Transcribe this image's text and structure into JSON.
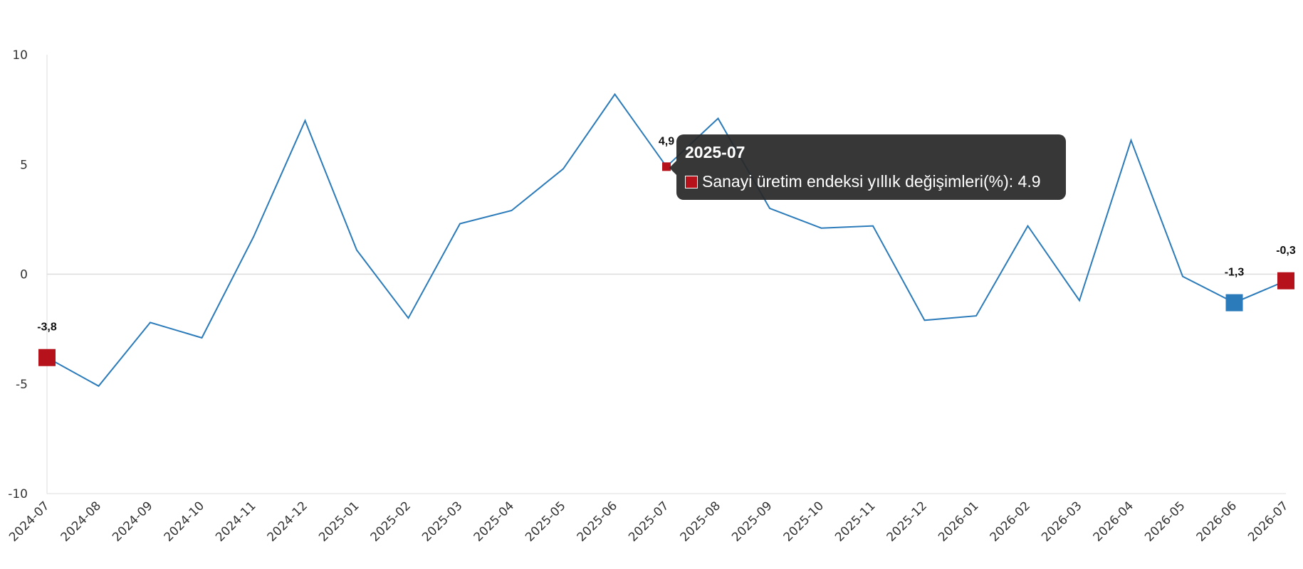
{
  "chart_data": {
    "type": "line",
    "title": "",
    "xlabel": "",
    "ylabel": "",
    "ylim": [
      -10,
      10
    ],
    "y_ticks": [
      "-10",
      "-5",
      "0",
      "5",
      "10"
    ],
    "y_tick_values": [
      -10,
      -5,
      0,
      5,
      10
    ],
    "categories": [
      "2024-07",
      "2024-08",
      "2024-09",
      "2024-10",
      "2024-11",
      "2024-12",
      "2025-01",
      "2025-02",
      "2025-03",
      "2025-04",
      "2025-05",
      "2025-06",
      "2025-07",
      "2025-08",
      "2025-09",
      "2025-10",
      "2025-11",
      "2025-12",
      "2026-01",
      "2026-02",
      "2026-03",
      "2026-04",
      "2026-05",
      "2026-06",
      "2026-07"
    ],
    "series": [
      {
        "name": "Sanayi üretim endeksi yıllık değişimleri(%)",
        "color": "#2b7bba",
        "values": [
          -3.8,
          -5.1,
          -2.2,
          -2.9,
          1.7,
          7.0,
          1.1,
          -2.0,
          2.3,
          2.9,
          4.8,
          8.2,
          4.9,
          7.1,
          3.0,
          2.1,
          2.2,
          -2.1,
          -1.9,
          2.2,
          -1.2,
          6.1,
          -0.1,
          -1.3,
          -0.3
        ]
      }
    ],
    "highlight_points": [
      {
        "category": "2024-07",
        "label": "-3,8",
        "color": "#b5121b"
      },
      {
        "category": "2025-07",
        "label": "4,9",
        "color": "#b5121b"
      },
      {
        "category": "2026-06",
        "label": "-1,3",
        "color": "#2b7bba"
      },
      {
        "category": "2026-07",
        "label": "-0,3",
        "color": "#b5121b"
      }
    ],
    "grid": false,
    "zero_line": true
  },
  "tooltip": {
    "title": "2025-07",
    "text": "Sanayi üretim endeksi yıllık değişimleri(%): 4.9",
    "swatch_color": "#b5121b"
  }
}
